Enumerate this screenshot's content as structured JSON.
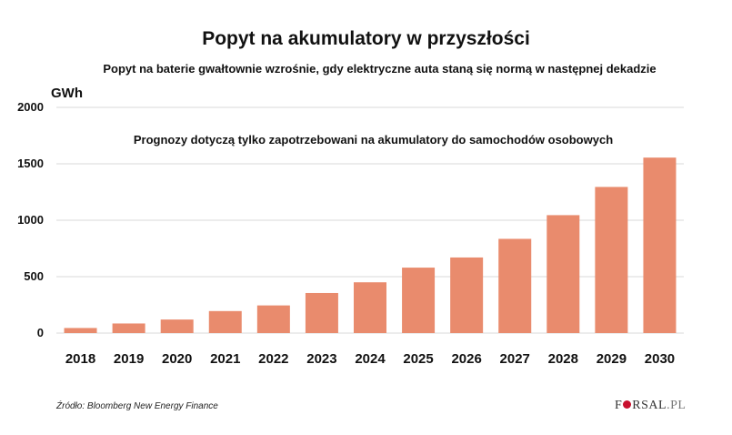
{
  "chart_data": {
    "type": "bar",
    "title": "Popyt na akumulatory w przyszłości",
    "subtitle": "Popyt na baterie gwałtownie wzrośnie, gdy elektryczne auta staną się normą w następnej dekadzie",
    "annotation": "Prognozy dotyczą tylko zapotrzebowani na akumulatory do samochodów osobowych",
    "ylabel": "GWh",
    "xlabel": "",
    "ylim": [
      0,
      2000
    ],
    "yticks": [
      0,
      500,
      1000,
      1500,
      2000
    ],
    "categories": [
      "2018",
      "2019",
      "2020",
      "2021",
      "2022",
      "2023",
      "2024",
      "2025",
      "2026",
      "2027",
      "2028",
      "2029",
      "2030"
    ],
    "values": [
      45,
      85,
      120,
      195,
      245,
      355,
      450,
      580,
      670,
      835,
      1045,
      1295,
      1555
    ],
    "bar_color": "#e98b6d",
    "grid_color": "#d9d9d9"
  },
  "source": "Źródło: Bloomberg New Energy Finance",
  "logo": {
    "part1": "F",
    "part2": "RSAL",
    "suffix": ".PL",
    "dot_color": "#c8102e"
  }
}
